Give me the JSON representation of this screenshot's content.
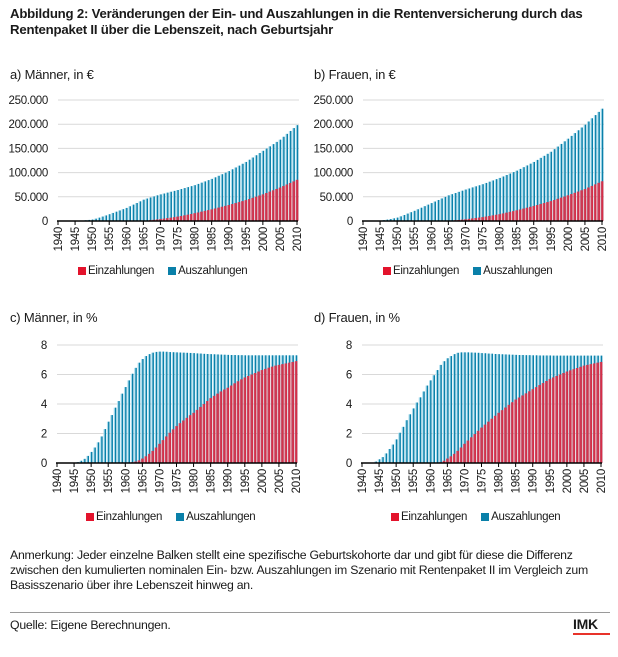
{
  "title": "Abbildung 2: Veränderungen der Ein- und Auszahlungen in die Rentenversicherung durch das Rentenpaket II über die Lebenszeit, nach Geburtsjahr",
  "colors": {
    "einzahlungen": "#d62e47",
    "einzahlungen_light": "#e46a7d",
    "auszahlungen": "#0a80a9",
    "auszahlungen_light": "#a9dcee",
    "grid": "#d9d9d9",
    "axis": "#000000",
    "logo_bar": "#e8332a"
  },
  "legend": {
    "einzahlungen": "Einzahlungen",
    "auszahlungen": "Auszahlungen"
  },
  "chart_data": [
    {
      "id": "a",
      "type": "bar",
      "title": "a) Männer, in €",
      "xlabel": "",
      "ylabel": "",
      "x_start": 1940,
      "x_end": 2010,
      "x_ticks": [
        "1940",
        "1945",
        "1950",
        "1955",
        "1960",
        "1965",
        "1970",
        "1975",
        "1980",
        "1985",
        "1990",
        "1995",
        "2000",
        "2005",
        "2010"
      ],
      "ylim": [
        0,
        250000
      ],
      "y_ticks": [
        0,
        50000,
        100000,
        150000,
        200000,
        250000
      ],
      "y_tick_labels": [
        "0",
        "50.000",
        "100.000",
        "150.000",
        "200.000",
        "250.000"
      ],
      "grid": true,
      "legend_position": "bottom",
      "series": [
        {
          "name": "Einzahlungen",
          "values": [
            0,
            0,
            0,
            0,
            0,
            0,
            0,
            0,
            0,
            0,
            0,
            0,
            0,
            0,
            0,
            0,
            0,
            0,
            0,
            0,
            0,
            0,
            0,
            50,
            200,
            500,
            1000,
            1700,
            2400,
            3200,
            4000,
            4900,
            5800,
            6800,
            7900,
            9000,
            10300,
            11600,
            13000,
            14500,
            16000,
            17600,
            19200,
            20800,
            22400,
            24000,
            25800,
            27600,
            29400,
            31200,
            33000,
            35000,
            37000,
            39000,
            41000,
            43000,
            45400,
            47800,
            50200,
            52600,
            55000,
            57800,
            60600,
            63400,
            66200,
            69000,
            72200,
            75400,
            78600,
            81800,
            85000
          ]
        },
        {
          "name": "Auszahlungen",
          "values": [
            0,
            0,
            0,
            0,
            0,
            500,
            700,
            1000,
            1500,
            2200,
            3000,
            4800,
            6900,
            9200,
            11500,
            14000,
            16600,
            19200,
            21800,
            24400,
            27000,
            30400,
            33800,
            37200,
            40600,
            44000,
            46400,
            48600,
            50800,
            53000,
            55000,
            56800,
            58600,
            60400,
            62200,
            64000,
            66000,
            68000,
            70000,
            72000,
            74000,
            76600,
            79200,
            81800,
            84400,
            87000,
            90200,
            93400,
            96600,
            99800,
            103000,
            106800,
            110600,
            114400,
            118200,
            122000,
            126600,
            131200,
            135800,
            140400,
            145000,
            149600,
            154200,
            158800,
            163400,
            168000,
            174000,
            180000,
            186000,
            192000,
            198000
          ]
        }
      ]
    },
    {
      "id": "b",
      "type": "bar",
      "title": "b) Frauen, in €",
      "xlabel": "",
      "ylabel": "",
      "x_start": 1940,
      "x_end": 2010,
      "x_ticks": [
        "1940",
        "1945",
        "1950",
        "1955",
        "1960",
        "1965",
        "1970",
        "1975",
        "1980",
        "1985",
        "1990",
        "1995",
        "2000",
        "2005",
        "2010"
      ],
      "ylim": [
        0,
        250000
      ],
      "y_ticks": [
        0,
        50000,
        100000,
        150000,
        200000,
        250000
      ],
      "y_tick_labels": [
        "0",
        "50.000",
        "100.000",
        "150.000",
        "200.000",
        "250.000"
      ],
      "grid": true,
      "legend_position": "bottom",
      "series": [
        {
          "name": "Einzahlungen",
          "values": [
            0,
            0,
            0,
            0,
            0,
            0,
            0,
            0,
            0,
            0,
            0,
            0,
            0,
            0,
            0,
            0,
            0,
            0,
            0,
            0,
            0,
            0,
            0,
            50,
            200,
            500,
            900,
            1500,
            2100,
            2800,
            3500,
            4400,
            5300,
            6200,
            7100,
            8000,
            9200,
            10400,
            11600,
            12800,
            14000,
            15600,
            17200,
            18800,
            20400,
            22000,
            23800,
            25600,
            27400,
            29200,
            31000,
            33000,
            35000,
            37000,
            39000,
            41000,
            43400,
            45800,
            48200,
            50600,
            53000,
            55600,
            58200,
            60800,
            63400,
            66000,
            69200,
            72400,
            75600,
            78800,
            82000
          ]
        },
        {
          "name": "Auszahlungen",
          "values": [
            0,
            0,
            0,
            0,
            0,
            1000,
            1800,
            2900,
            4100,
            5500,
            7000,
            9600,
            12400,
            15300,
            18200,
            21000,
            24200,
            27400,
            30600,
            33800,
            37000,
            40200,
            43400,
            46600,
            49800,
            53000,
            55400,
            57800,
            60200,
            62600,
            65000,
            67200,
            69400,
            71600,
            73800,
            76000,
            78600,
            81200,
            83800,
            86400,
            89000,
            92000,
            95000,
            98000,
            101000,
            104000,
            107600,
            111200,
            114800,
            118400,
            122000,
            126200,
            130400,
            134600,
            138800,
            143000,
            148400,
            153800,
            159200,
            164600,
            170000,
            175800,
            181600,
            187400,
            193200,
            199000,
            205600,
            212200,
            218800,
            225400,
            232000
          ]
        }
      ]
    },
    {
      "id": "c",
      "type": "bar",
      "title": "c) Männer, in %",
      "xlabel": "",
      "ylabel": "",
      "x_start": 1940,
      "x_end": 2010,
      "x_ticks": [
        "1940",
        "1945",
        "1950",
        "1955",
        "1960",
        "1965",
        "1970",
        "1975",
        "1980",
        "1985",
        "1990",
        "1995",
        "2000",
        "2005",
        "2010"
      ],
      "ylim": [
        0,
        8
      ],
      "y_ticks": [
        0,
        2,
        4,
        6,
        8
      ],
      "y_tick_labels": [
        "0",
        "2",
        "4",
        "6",
        "8"
      ],
      "grid": true,
      "legend_position": "bottom",
      "series": [
        {
          "name": "Einzahlungen",
          "values": [
            0,
            0,
            0,
            0,
            0,
            0,
            0,
            0,
            0,
            0,
            0,
            0,
            0,
            0,
            0,
            0,
            0,
            0,
            0,
            0,
            0,
            0.02,
            0.05,
            0.1,
            0.18,
            0.3,
            0.45,
            0.62,
            0.82,
            1.05,
            1.3,
            1.55,
            1.8,
            2.05,
            2.28,
            2.5,
            2.7,
            2.88,
            3.06,
            3.24,
            3.4,
            3.6,
            3.8,
            4.0,
            4.2,
            4.4,
            4.55,
            4.7,
            4.85,
            4.98,
            5.1,
            5.25,
            5.4,
            5.54,
            5.67,
            5.8,
            5.9,
            6.0,
            6.1,
            6.2,
            6.3,
            6.38,
            6.46,
            6.53,
            6.6,
            6.65,
            6.7,
            6.75,
            6.8,
            6.85,
            6.9
          ]
        },
        {
          "name": "Auszahlungen",
          "values": [
            0,
            0,
            0,
            0,
            0,
            0.02,
            0.06,
            0.15,
            0.28,
            0.48,
            0.75,
            1.05,
            1.4,
            1.8,
            2.3,
            2.8,
            3.25,
            3.75,
            4.2,
            4.7,
            5.15,
            5.6,
            6.05,
            6.45,
            6.8,
            7.05,
            7.25,
            7.38,
            7.48,
            7.53,
            7.55,
            7.55,
            7.54,
            7.52,
            7.51,
            7.5,
            7.49,
            7.48,
            7.47,
            7.46,
            7.45,
            7.43,
            7.42,
            7.4,
            7.39,
            7.38,
            7.37,
            7.36,
            7.35,
            7.34,
            7.33,
            7.32,
            7.32,
            7.31,
            7.31,
            7.3,
            7.3,
            7.3,
            7.3,
            7.3,
            7.3,
            7.3,
            7.3,
            7.3,
            7.3,
            7.3,
            7.3,
            7.3,
            7.3,
            7.3,
            7.3
          ]
        }
      ]
    },
    {
      "id": "d",
      "type": "bar",
      "title": "d) Frauen, in %",
      "xlabel": "",
      "ylabel": "",
      "x_start": 1940,
      "x_end": 2010,
      "x_ticks": [
        "1940",
        "1945",
        "1950",
        "1955",
        "1960",
        "1965",
        "1970",
        "1975",
        "1980",
        "1985",
        "1990",
        "1995",
        "2000",
        "2005",
        "2010"
      ],
      "ylim": [
        0,
        8
      ],
      "y_ticks": [
        0,
        2,
        4,
        6,
        8
      ],
      "y_tick_labels": [
        "0",
        "2",
        "4",
        "6",
        "8"
      ],
      "grid": true,
      "legend_position": "bottom",
      "series": [
        {
          "name": "Einzahlungen",
          "values": [
            0,
            0,
            0,
            0,
            0,
            0,
            0,
            0,
            0,
            0,
            0,
            0,
            0,
            0,
            0,
            0,
            0,
            0,
            0,
            0,
            0,
            0,
            0,
            0.05,
            0.15,
            0.3,
            0.45,
            0.62,
            0.82,
            1.05,
            1.3,
            1.52,
            1.74,
            1.96,
            2.18,
            2.4,
            2.6,
            2.8,
            3.0,
            3.2,
            3.4,
            3.58,
            3.76,
            3.94,
            4.12,
            4.3,
            4.44,
            4.58,
            4.72,
            4.86,
            5.0,
            5.14,
            5.28,
            5.42,
            5.56,
            5.7,
            5.8,
            5.9,
            6.0,
            6.1,
            6.2,
            6.28,
            6.36,
            6.44,
            6.52,
            6.6,
            6.65,
            6.7,
            6.75,
            6.8,
            6.85
          ]
        },
        {
          "name": "Auszahlungen",
          "values": [
            0,
            0,
            0,
            0,
            0.1,
            0.25,
            0.4,
            0.65,
            0.95,
            1.25,
            1.6,
            2.05,
            2.45,
            2.9,
            3.3,
            3.7,
            4.1,
            4.45,
            4.85,
            5.25,
            5.6,
            5.95,
            6.3,
            6.65,
            6.9,
            7.1,
            7.25,
            7.38,
            7.47,
            7.5,
            7.5,
            7.5,
            7.49,
            7.48,
            7.47,
            7.45,
            7.44,
            7.42,
            7.41,
            7.39,
            7.38,
            7.37,
            7.36,
            7.35,
            7.34,
            7.33,
            7.32,
            7.32,
            7.31,
            7.31,
            7.3,
            7.3,
            7.29,
            7.29,
            7.29,
            7.29,
            7.28,
            7.28,
            7.28,
            7.28,
            7.28,
            7.28,
            7.28,
            7.28,
            7.28,
            7.28,
            7.28,
            7.28,
            7.28,
            7.28,
            7.28
          ]
        }
      ]
    }
  ],
  "note": "Anmerkung: Jeder einzelne Balken stellt eine spezifische Geburtskohorte dar und gibt für diese die Differenz zwischen den kumulierten nominalen Ein- bzw. Auszahlungen im Szenario mit Rentenpaket II im Vergleich zum Basisszenario über ihre Lebenszeit hinweg an.",
  "source": "Quelle: Eigene Berechnungen.",
  "logo": "IMK"
}
